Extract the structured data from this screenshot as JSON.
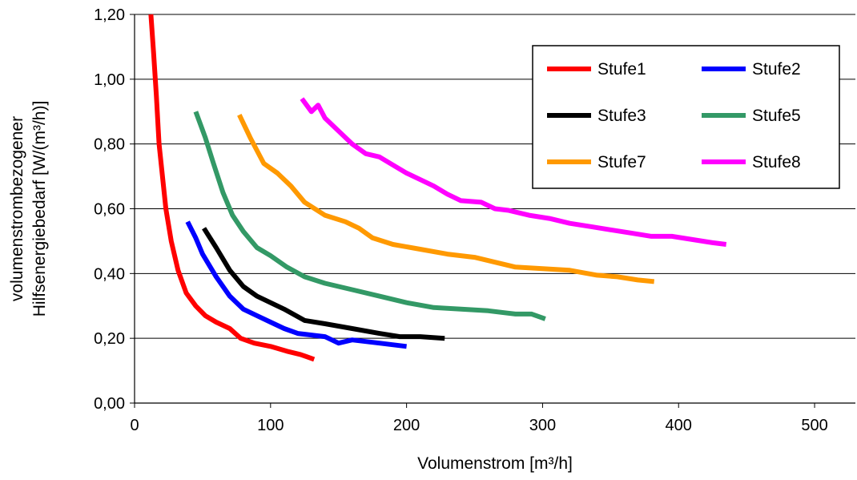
{
  "chart_data": {
    "type": "line",
    "title": "",
    "xlabel": "Volumenstrom [m³/h]",
    "ylabel": [
      "volumenstrombezogener",
      "Hilfsenergiebedarf [W/(m³/h)]"
    ],
    "xlim": [
      0,
      530
    ],
    "ylim": [
      0,
      1.2
    ],
    "x_ticks": [
      0,
      100,
      200,
      300,
      400,
      500
    ],
    "x_tick_labels": [
      "0",
      "100",
      "200",
      "300",
      "400",
      "500"
    ],
    "y_ticks": [
      0,
      0.2,
      0.4,
      0.6,
      0.8,
      1.0,
      1.2
    ],
    "y_tick_labels": [
      "0,00",
      "0,20",
      "0,40",
      "0,60",
      "0,80",
      "1,00",
      "1,20"
    ],
    "grid": "horizontal",
    "legend_position": "top-right",
    "series": [
      {
        "name": "Stufe1",
        "color": "#ff0000",
        "points": [
          [
            12,
            1.2
          ],
          [
            14,
            1.08
          ],
          [
            16,
            0.95
          ],
          [
            18,
            0.8
          ],
          [
            20,
            0.72
          ],
          [
            23,
            0.6
          ],
          [
            27,
            0.5
          ],
          [
            32,
            0.41
          ],
          [
            38,
            0.34
          ],
          [
            45,
            0.3
          ],
          [
            52,
            0.27
          ],
          [
            60,
            0.25
          ],
          [
            70,
            0.23
          ],
          [
            78,
            0.2
          ],
          [
            88,
            0.185
          ],
          [
            100,
            0.175
          ],
          [
            112,
            0.16
          ],
          [
            122,
            0.15
          ],
          [
            132,
            0.135
          ]
        ]
      },
      {
        "name": "Stufe2",
        "color": "#0000ff",
        "points": [
          [
            39,
            0.56
          ],
          [
            45,
            0.51
          ],
          [
            50,
            0.46
          ],
          [
            60,
            0.39
          ],
          [
            70,
            0.33
          ],
          [
            80,
            0.29
          ],
          [
            90,
            0.27
          ],
          [
            100,
            0.25
          ],
          [
            110,
            0.23
          ],
          [
            120,
            0.215
          ],
          [
            130,
            0.21
          ],
          [
            140,
            0.205
          ],
          [
            150,
            0.185
          ],
          [
            160,
            0.195
          ],
          [
            180,
            0.185
          ],
          [
            200,
            0.175
          ]
        ]
      },
      {
        "name": "Stufe3",
        "color": "#000000",
        "points": [
          [
            51,
            0.54
          ],
          [
            60,
            0.48
          ],
          [
            70,
            0.41
          ],
          [
            80,
            0.36
          ],
          [
            90,
            0.33
          ],
          [
            100,
            0.31
          ],
          [
            110,
            0.29
          ],
          [
            125,
            0.255
          ],
          [
            140,
            0.245
          ],
          [
            160,
            0.23
          ],
          [
            180,
            0.215
          ],
          [
            195,
            0.205
          ],
          [
            210,
            0.205
          ],
          [
            228,
            0.2
          ]
        ]
      },
      {
        "name": "Stufe5",
        "color": "#339966",
        "points": [
          [
            45,
            0.9
          ],
          [
            52,
            0.82
          ],
          [
            58,
            0.74
          ],
          [
            65,
            0.65
          ],
          [
            72,
            0.58
          ],
          [
            80,
            0.53
          ],
          [
            90,
            0.48
          ],
          [
            100,
            0.455
          ],
          [
            112,
            0.42
          ],
          [
            125,
            0.39
          ],
          [
            140,
            0.37
          ],
          [
            160,
            0.35
          ],
          [
            180,
            0.33
          ],
          [
            200,
            0.31
          ],
          [
            220,
            0.295
          ],
          [
            240,
            0.29
          ],
          [
            260,
            0.285
          ],
          [
            280,
            0.275
          ],
          [
            292,
            0.275
          ],
          [
            302,
            0.26
          ]
        ]
      },
      {
        "name": "Stufe7",
        "color": "#ff9900",
        "points": [
          [
            77,
            0.89
          ],
          [
            85,
            0.82
          ],
          [
            95,
            0.74
          ],
          [
            105,
            0.71
          ],
          [
            115,
            0.67
          ],
          [
            125,
            0.62
          ],
          [
            140,
            0.58
          ],
          [
            155,
            0.56
          ],
          [
            165,
            0.54
          ],
          [
            175,
            0.51
          ],
          [
            190,
            0.49
          ],
          [
            210,
            0.475
          ],
          [
            230,
            0.46
          ],
          [
            250,
            0.45
          ],
          [
            265,
            0.435
          ],
          [
            280,
            0.42
          ],
          [
            300,
            0.415
          ],
          [
            320,
            0.41
          ],
          [
            340,
            0.395
          ],
          [
            355,
            0.39
          ],
          [
            370,
            0.38
          ],
          [
            382,
            0.375
          ]
        ]
      },
      {
        "name": "Stufe8",
        "color": "#ff00ff",
        "points": [
          [
            123,
            0.94
          ],
          [
            130,
            0.9
          ],
          [
            135,
            0.92
          ],
          [
            140,
            0.88
          ],
          [
            150,
            0.84
          ],
          [
            160,
            0.8
          ],
          [
            170,
            0.77
          ],
          [
            180,
            0.76
          ],
          [
            190,
            0.735
          ],
          [
            200,
            0.71
          ],
          [
            210,
            0.69
          ],
          [
            220,
            0.67
          ],
          [
            230,
            0.645
          ],
          [
            240,
            0.625
          ],
          [
            255,
            0.62
          ],
          [
            265,
            0.6
          ],
          [
            275,
            0.595
          ],
          [
            290,
            0.58
          ],
          [
            305,
            0.57
          ],
          [
            320,
            0.555
          ],
          [
            335,
            0.545
          ],
          [
            350,
            0.535
          ],
          [
            365,
            0.525
          ],
          [
            380,
            0.515
          ],
          [
            395,
            0.515
          ],
          [
            410,
            0.505
          ],
          [
            425,
            0.495
          ],
          [
            435,
            0.49
          ]
        ]
      }
    ]
  }
}
